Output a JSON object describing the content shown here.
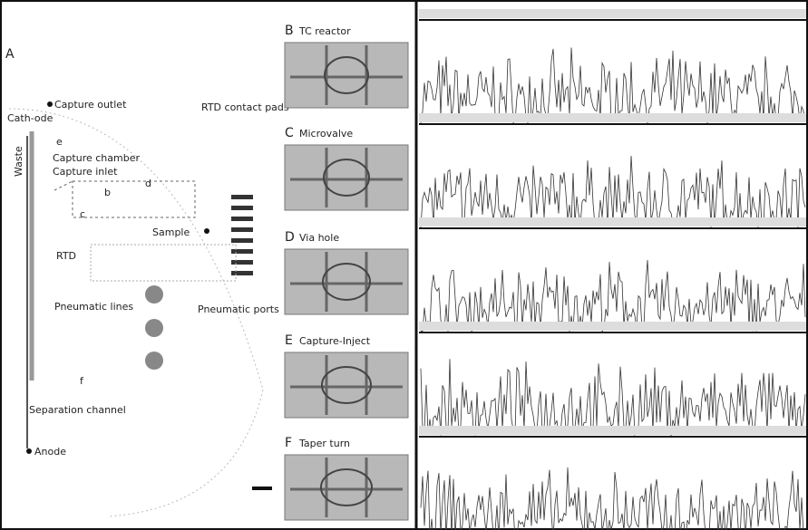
{
  "panel_a": {
    "letter": "A",
    "capture_outlet": "Capture outlet",
    "cathode": "Cath-ode",
    "capture_chamber": "Capture chamber",
    "capture_inlet": "Capture inlet",
    "rtd_contact_pads": "RTD contact pads",
    "waste": "Waste",
    "e": "e",
    "d": "d",
    "b": "b",
    "c": "c",
    "sample": "Sample",
    "rtd": "RTD",
    "pneumatic_lines": "Pneumatic lines",
    "pneumatic_ports": "Pneumatic ports",
    "f": "f",
    "separation_channel": "Separation channel",
    "anode": "Anode"
  },
  "panels": [
    {
      "letter": "B",
      "title": "TC reactor"
    },
    {
      "letter": "C",
      "title": "Microvalve"
    },
    {
      "letter": "D",
      "title": "Via hole"
    },
    {
      "letter": "E",
      "title": "Capture-Inject"
    },
    {
      "letter": "F",
      "title": "Taper turn"
    }
  ]
}
